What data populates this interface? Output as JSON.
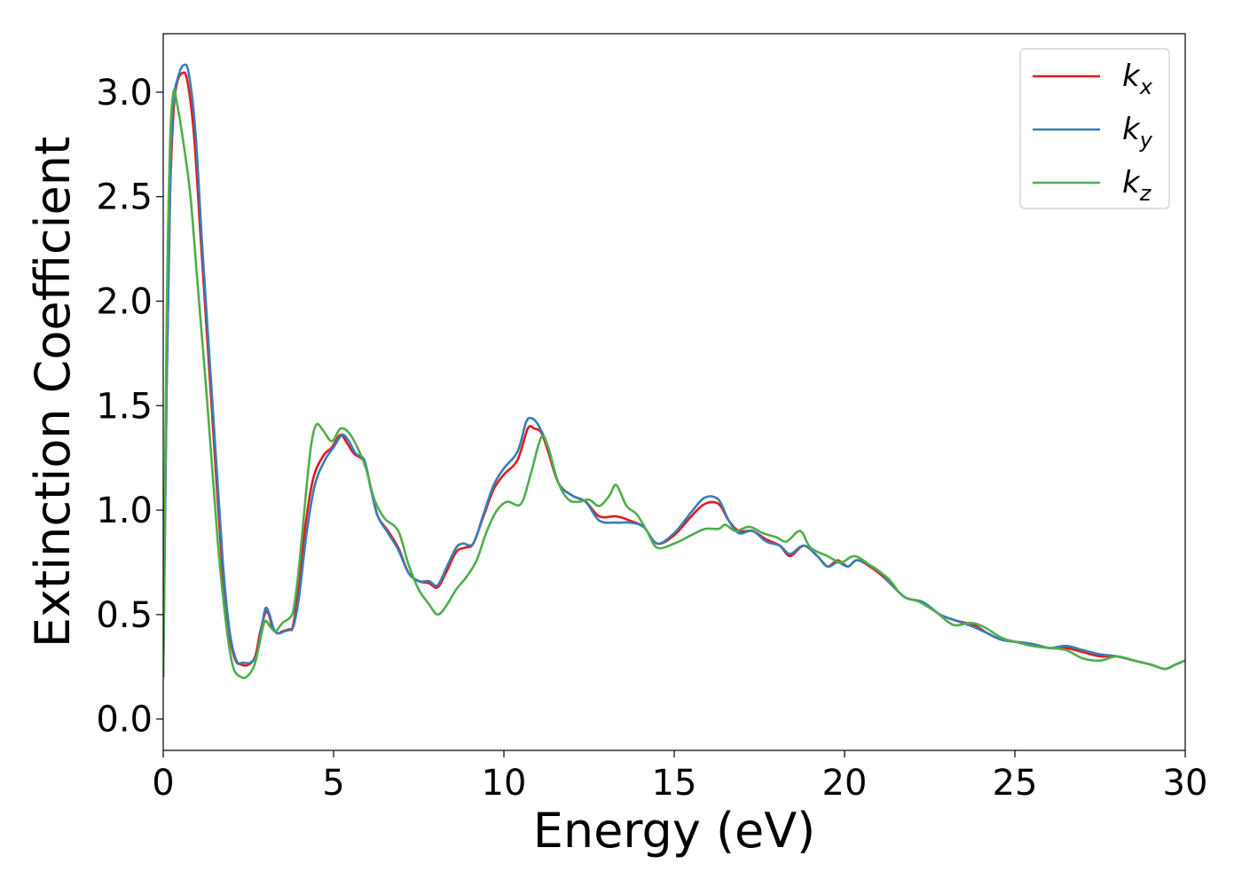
{
  "chart_data": {
    "type": "line",
    "title": "",
    "xlabel": "Energy (eV)",
    "ylabel": "Extinction Coefficient",
    "xlim": [
      0,
      30
    ],
    "ylim": [
      -0.15,
      3.28
    ],
    "xticks": [
      0,
      5,
      10,
      15,
      20,
      25,
      30
    ],
    "xtick_labels": [
      "0",
      "5",
      "10",
      "15",
      "20",
      "25",
      "30"
    ],
    "yticks": [
      0.0,
      0.5,
      1.0,
      1.5,
      2.0,
      2.5,
      3.0
    ],
    "ytick_labels": [
      "0.0",
      "0.5",
      "1.0",
      "1.5",
      "2.0",
      "2.5",
      "3.0"
    ],
    "grid": false,
    "legend_position": "top-right",
    "series": [
      {
        "name": "k",
        "subscript": "x",
        "color": "#e41a1c",
        "points": [
          [
            0,
            0.2
          ],
          [
            0.1,
            1.6
          ],
          [
            0.2,
            2.5
          ],
          [
            0.3,
            2.9
          ],
          [
            0.4,
            3.04
          ],
          [
            0.55,
            3.09
          ],
          [
            0.7,
            3.06
          ],
          [
            0.9,
            2.8
          ],
          [
            1.1,
            2.3
          ],
          [
            1.4,
            1.55
          ],
          [
            1.7,
            0.8
          ],
          [
            1.9,
            0.45
          ],
          [
            2.1,
            0.29
          ],
          [
            2.3,
            0.26
          ],
          [
            2.5,
            0.26
          ],
          [
            2.7,
            0.3
          ],
          [
            2.85,
            0.42
          ],
          [
            3.0,
            0.51
          ],
          [
            3.1,
            0.5
          ],
          [
            3.2,
            0.44
          ],
          [
            3.35,
            0.41
          ],
          [
            3.5,
            0.42
          ],
          [
            3.7,
            0.43
          ],
          [
            3.8,
            0.44
          ],
          [
            3.95,
            0.6
          ],
          [
            4.15,
            0.9
          ],
          [
            4.4,
            1.15
          ],
          [
            4.7,
            1.26
          ],
          [
            4.95,
            1.3
          ],
          [
            5.2,
            1.36
          ],
          [
            5.4,
            1.32
          ],
          [
            5.6,
            1.27
          ],
          [
            5.9,
            1.23
          ],
          [
            6.1,
            1.1
          ],
          [
            6.3,
            0.97
          ],
          [
            6.6,
            0.9
          ],
          [
            6.9,
            0.82
          ],
          [
            7.2,
            0.7
          ],
          [
            7.5,
            0.66
          ],
          [
            7.8,
            0.65
          ],
          [
            8.05,
            0.63
          ],
          [
            8.3,
            0.7
          ],
          [
            8.6,
            0.8
          ],
          [
            8.85,
            0.82
          ],
          [
            9.1,
            0.84
          ],
          [
            9.4,
            0.97
          ],
          [
            9.7,
            1.1
          ],
          [
            10.0,
            1.17
          ],
          [
            10.4,
            1.24
          ],
          [
            10.7,
            1.39
          ],
          [
            10.9,
            1.39
          ],
          [
            11.1,
            1.37
          ],
          [
            11.3,
            1.28
          ],
          [
            11.6,
            1.13
          ],
          [
            12.0,
            1.07
          ],
          [
            12.4,
            1.04
          ],
          [
            12.8,
            0.97
          ],
          [
            13.3,
            0.97
          ],
          [
            13.7,
            0.95
          ],
          [
            14.1,
            0.92
          ],
          [
            14.5,
            0.84
          ],
          [
            15.0,
            0.88
          ],
          [
            15.5,
            0.97
          ],
          [
            15.9,
            1.03
          ],
          [
            16.3,
            1.03
          ],
          [
            16.6,
            0.95
          ],
          [
            16.9,
            0.9
          ],
          [
            17.3,
            0.9
          ],
          [
            17.7,
            0.86
          ],
          [
            18.1,
            0.83
          ],
          [
            18.4,
            0.78
          ],
          [
            18.8,
            0.83
          ],
          [
            19.2,
            0.78
          ],
          [
            19.5,
            0.73
          ],
          [
            19.8,
            0.76
          ],
          [
            20.1,
            0.73
          ],
          [
            20.4,
            0.76
          ],
          [
            21.0,
            0.7
          ],
          [
            21.4,
            0.64
          ],
          [
            21.8,
            0.58
          ],
          [
            22.3,
            0.56
          ],
          [
            22.8,
            0.5
          ],
          [
            23.3,
            0.47
          ],
          [
            23.8,
            0.45
          ],
          [
            24.2,
            0.41
          ],
          [
            24.6,
            0.38
          ],
          [
            25.0,
            0.37
          ],
          [
            25.5,
            0.36
          ],
          [
            26.0,
            0.34
          ],
          [
            26.5,
            0.34
          ],
          [
            27.0,
            0.32
          ],
          [
            27.5,
            0.3
          ],
          [
            28.0,
            0.3
          ],
          [
            28.5,
            0.28
          ],
          [
            29.0,
            0.26
          ],
          [
            29.4,
            0.24
          ],
          [
            29.7,
            0.26
          ],
          [
            30.0,
            0.28
          ]
        ]
      },
      {
        "name": "k",
        "subscript": "y",
        "color": "#377eb8",
        "points": [
          [
            0,
            0.2
          ],
          [
            0.1,
            1.6
          ],
          [
            0.2,
            2.55
          ],
          [
            0.3,
            2.95
          ],
          [
            0.45,
            3.08
          ],
          [
            0.6,
            3.13
          ],
          [
            0.75,
            3.09
          ],
          [
            0.95,
            2.8
          ],
          [
            1.15,
            2.25
          ],
          [
            1.45,
            1.5
          ],
          [
            1.75,
            0.75
          ],
          [
            1.95,
            0.42
          ],
          [
            2.15,
            0.28
          ],
          [
            2.35,
            0.27
          ],
          [
            2.55,
            0.27
          ],
          [
            2.75,
            0.31
          ],
          [
            2.9,
            0.45
          ],
          [
            3.0,
            0.53
          ],
          [
            3.1,
            0.51
          ],
          [
            3.25,
            0.43
          ],
          [
            3.4,
            0.41
          ],
          [
            3.55,
            0.42
          ],
          [
            3.75,
            0.43
          ],
          [
            3.85,
            0.46
          ],
          [
            4.0,
            0.6
          ],
          [
            4.2,
            0.88
          ],
          [
            4.45,
            1.12
          ],
          [
            4.75,
            1.24
          ],
          [
            5.0,
            1.3
          ],
          [
            5.25,
            1.36
          ],
          [
            5.45,
            1.33
          ],
          [
            5.65,
            1.27
          ],
          [
            5.9,
            1.24
          ],
          [
            6.1,
            1.1
          ],
          [
            6.3,
            0.97
          ],
          [
            6.6,
            0.89
          ],
          [
            6.9,
            0.81
          ],
          [
            7.2,
            0.7
          ],
          [
            7.5,
            0.66
          ],
          [
            7.8,
            0.66
          ],
          [
            8.05,
            0.64
          ],
          [
            8.3,
            0.72
          ],
          [
            8.6,
            0.82
          ],
          [
            8.8,
            0.84
          ],
          [
            9.1,
            0.84
          ],
          [
            9.4,
            0.98
          ],
          [
            9.7,
            1.12
          ],
          [
            10.0,
            1.2
          ],
          [
            10.4,
            1.28
          ],
          [
            10.65,
            1.42
          ],
          [
            10.8,
            1.44
          ],
          [
            11.0,
            1.41
          ],
          [
            11.3,
            1.3
          ],
          [
            11.6,
            1.13
          ],
          [
            12.0,
            1.07
          ],
          [
            12.4,
            1.04
          ],
          [
            12.8,
            0.95
          ],
          [
            13.3,
            0.94
          ],
          [
            13.7,
            0.94
          ],
          [
            14.1,
            0.92
          ],
          [
            14.5,
            0.84
          ],
          [
            15.0,
            0.89
          ],
          [
            15.5,
            0.99
          ],
          [
            15.9,
            1.06
          ],
          [
            16.3,
            1.05
          ],
          [
            16.6,
            0.95
          ],
          [
            16.9,
            0.89
          ],
          [
            17.3,
            0.9
          ],
          [
            17.7,
            0.85
          ],
          [
            18.1,
            0.83
          ],
          [
            18.4,
            0.79
          ],
          [
            18.8,
            0.83
          ],
          [
            19.2,
            0.78
          ],
          [
            19.5,
            0.73
          ],
          [
            19.8,
            0.75
          ],
          [
            20.1,
            0.73
          ],
          [
            20.4,
            0.76
          ],
          [
            21.0,
            0.71
          ],
          [
            21.4,
            0.64
          ],
          [
            21.8,
            0.58
          ],
          [
            22.3,
            0.56
          ],
          [
            22.8,
            0.5
          ],
          [
            23.3,
            0.47
          ],
          [
            23.8,
            0.44
          ],
          [
            24.2,
            0.41
          ],
          [
            24.6,
            0.38
          ],
          [
            25.0,
            0.37
          ],
          [
            25.5,
            0.36
          ],
          [
            26.0,
            0.34
          ],
          [
            26.5,
            0.35
          ],
          [
            27.0,
            0.33
          ],
          [
            27.5,
            0.31
          ],
          [
            28.0,
            0.3
          ],
          [
            28.5,
            0.28
          ],
          [
            29.0,
            0.26
          ],
          [
            29.4,
            0.24
          ],
          [
            29.7,
            0.26
          ],
          [
            30.0,
            0.28
          ]
        ]
      },
      {
        "name": "k",
        "subscript": "z",
        "color": "#4daf4a",
        "points": [
          [
            0,
            0.2
          ],
          [
            0.1,
            1.9
          ],
          [
            0.2,
            2.75
          ],
          [
            0.3,
            3.0
          ],
          [
            0.4,
            2.95
          ],
          [
            0.6,
            2.75
          ],
          [
            0.8,
            2.5
          ],
          [
            1.0,
            2.1
          ],
          [
            1.3,
            1.5
          ],
          [
            1.6,
            0.85
          ],
          [
            1.85,
            0.45
          ],
          [
            2.05,
            0.25
          ],
          [
            2.3,
            0.2
          ],
          [
            2.5,
            0.21
          ],
          [
            2.7,
            0.27
          ],
          [
            2.9,
            0.42
          ],
          [
            3.0,
            0.47
          ],
          [
            3.15,
            0.44
          ],
          [
            3.3,
            0.42
          ],
          [
            3.5,
            0.46
          ],
          [
            3.75,
            0.49
          ],
          [
            3.85,
            0.55
          ],
          [
            4.0,
            0.75
          ],
          [
            4.2,
            1.1
          ],
          [
            4.35,
            1.32
          ],
          [
            4.5,
            1.41
          ],
          [
            4.7,
            1.38
          ],
          [
            4.95,
            1.33
          ],
          [
            5.2,
            1.39
          ],
          [
            5.45,
            1.37
          ],
          [
            5.7,
            1.3
          ],
          [
            5.95,
            1.2
          ],
          [
            6.2,
            1.05
          ],
          [
            6.5,
            0.96
          ],
          [
            6.9,
            0.9
          ],
          [
            7.2,
            0.74
          ],
          [
            7.5,
            0.62
          ],
          [
            7.8,
            0.55
          ],
          [
            8.05,
            0.5
          ],
          [
            8.3,
            0.54
          ],
          [
            8.6,
            0.62
          ],
          [
            8.9,
            0.68
          ],
          [
            9.2,
            0.76
          ],
          [
            9.5,
            0.9
          ],
          [
            9.8,
            1.0
          ],
          [
            10.1,
            1.04
          ],
          [
            10.5,
            1.03
          ],
          [
            10.8,
            1.18
          ],
          [
            11.1,
            1.35
          ],
          [
            11.3,
            1.3
          ],
          [
            11.6,
            1.13
          ],
          [
            11.9,
            1.05
          ],
          [
            12.2,
            1.04
          ],
          [
            12.5,
            1.05
          ],
          [
            12.8,
            1.02
          ],
          [
            13.1,
            1.07
          ],
          [
            13.3,
            1.12
          ],
          [
            13.6,
            1.02
          ],
          [
            13.9,
            0.98
          ],
          [
            14.2,
            0.9
          ],
          [
            14.5,
            0.82
          ],
          [
            15.0,
            0.84
          ],
          [
            15.5,
            0.88
          ],
          [
            15.9,
            0.91
          ],
          [
            16.3,
            0.91
          ],
          [
            16.5,
            0.93
          ],
          [
            16.8,
            0.9
          ],
          [
            17.2,
            0.92
          ],
          [
            17.6,
            0.89
          ],
          [
            18.0,
            0.87
          ],
          [
            18.3,
            0.85
          ],
          [
            18.7,
            0.9
          ],
          [
            19.0,
            0.82
          ],
          [
            19.5,
            0.78
          ],
          [
            19.9,
            0.75
          ],
          [
            20.3,
            0.78
          ],
          [
            20.8,
            0.73
          ],
          [
            21.3,
            0.67
          ],
          [
            21.7,
            0.59
          ],
          [
            22.2,
            0.56
          ],
          [
            22.7,
            0.51
          ],
          [
            23.2,
            0.45
          ],
          [
            23.7,
            0.46
          ],
          [
            24.1,
            0.44
          ],
          [
            24.6,
            0.39
          ],
          [
            25.0,
            0.37
          ],
          [
            25.5,
            0.35
          ],
          [
            26.0,
            0.34
          ],
          [
            26.5,
            0.33
          ],
          [
            27.0,
            0.29
          ],
          [
            27.5,
            0.28
          ],
          [
            28.0,
            0.3
          ],
          [
            28.5,
            0.28
          ],
          [
            29.0,
            0.26
          ],
          [
            29.4,
            0.24
          ],
          [
            29.7,
            0.26
          ],
          [
            30.0,
            0.28
          ]
        ]
      }
    ]
  }
}
